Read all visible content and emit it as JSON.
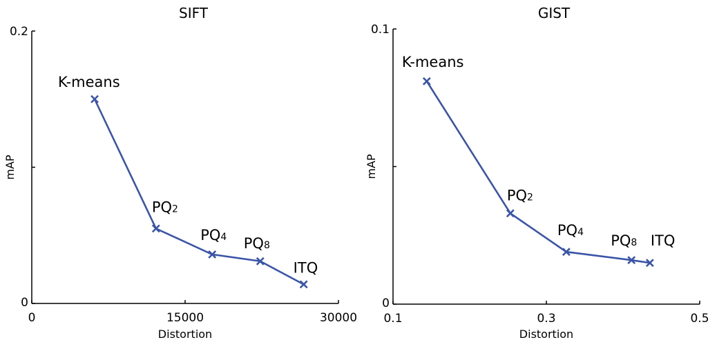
{
  "chart_data": [
    {
      "type": "line",
      "title": "SIFT",
      "xlabel": "Distortion",
      "ylabel": "mAP",
      "xlim": [
        0,
        30000
      ],
      "ylim": [
        0,
        0.2
      ],
      "xticks": [
        0,
        15000,
        30000
      ],
      "xtick_labels": [
        "0",
        "15000",
        "30000"
      ],
      "yticks": [
        0,
        0.1,
        0.2
      ],
      "ytick_labels": [
        "0",
        "",
        "0.2"
      ],
      "grid": false,
      "color": "#3a55a8",
      "marker": "x",
      "points": [
        {
          "label": "K-means",
          "base": "K-means",
          "sub": "",
          "x": 6150,
          "y": 0.15
        },
        {
          "label": "PQ2",
          "base": "PQ",
          "sub": "2",
          "x": 12150,
          "y": 0.055
        },
        {
          "label": "PQ4",
          "base": "PQ",
          "sub": "4",
          "x": 17650,
          "y": 0.036
        },
        {
          "label": "PQ8",
          "base": "PQ",
          "sub": "8",
          "x": 22350,
          "y": 0.031
        },
        {
          "label": "ITQ",
          "base": "ITQ",
          "sub": "",
          "x": 26600,
          "y": 0.014
        }
      ]
    },
    {
      "type": "line",
      "title": "GIST",
      "xlabel": "Distortion",
      "ylabel": "mAP",
      "xlim": [
        0.1,
        0.5
      ],
      "ylim": [
        0,
        0.1
      ],
      "xticks": [
        0.1,
        0.3,
        0.5
      ],
      "xtick_labels": [
        "0.1",
        "0.3",
        "0.5"
      ],
      "yticks": [
        0,
        0.05,
        0.1
      ],
      "ytick_labels": [
        "0",
        "",
        "0.1"
      ],
      "grid": false,
      "color": "#3a55a8",
      "marker": "x",
      "points": [
        {
          "label": "K-means",
          "base": "K-means",
          "sub": "",
          "x": 0.144,
          "y": 0.081
        },
        {
          "label": "PQ2",
          "base": "PQ",
          "sub": "2",
          "x": 0.253,
          "y": 0.033
        },
        {
          "label": "PQ4",
          "base": "PQ",
          "sub": "4",
          "x": 0.326,
          "y": 0.019
        },
        {
          "label": "PQ8",
          "base": "PQ",
          "sub": "8",
          "x": 0.411,
          "y": 0.016
        },
        {
          "label": "ITQ",
          "base": "ITQ",
          "sub": "",
          "x": 0.435,
          "y": 0.015
        }
      ]
    }
  ]
}
